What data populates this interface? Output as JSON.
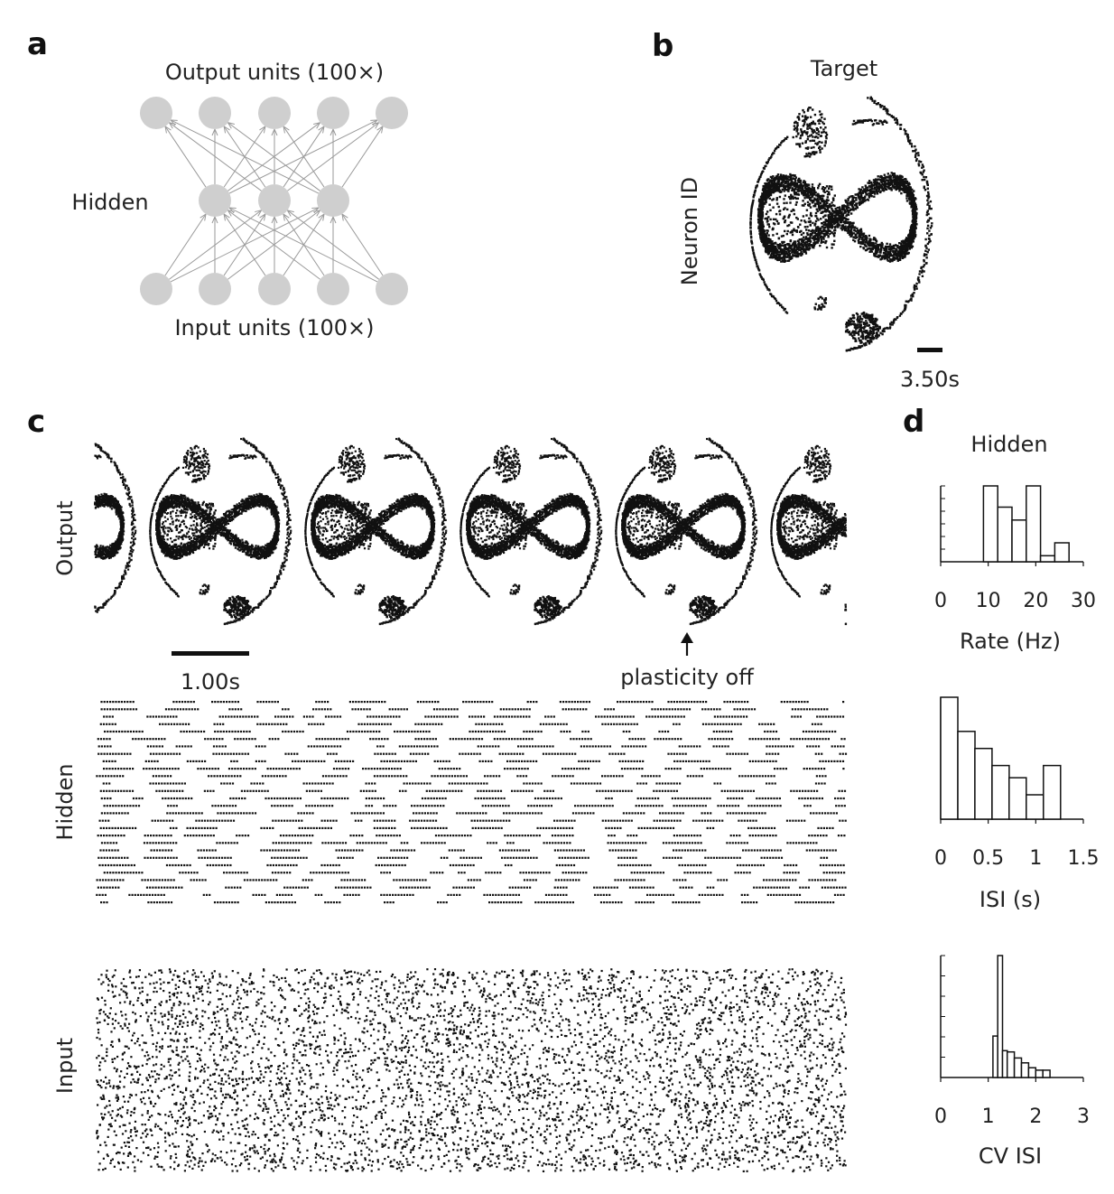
{
  "panels": {
    "a": {
      "letter": "a",
      "output_label": "Output units (100×)",
      "hidden_label": "Hidden",
      "input_label": "Input units (100×)",
      "colors": {
        "node": "#cfcfcf",
        "edge": "#9a9a9a"
      }
    },
    "b": {
      "letter": "b",
      "title": "Target",
      "ylabel": "Neuron ID",
      "scale_label": "3.50s"
    },
    "c": {
      "letter": "c",
      "rows": [
        {
          "key": "output",
          "label": "Output"
        },
        {
          "key": "hidden",
          "label": "Hidden"
        },
        {
          "key": "input",
          "label": "Input"
        }
      ],
      "scale_label": "1.00s",
      "annotation": "plasticity off"
    },
    "d": {
      "letter": "d",
      "title": "Hidden"
    }
  },
  "chart_data": [
    {
      "type": "bar",
      "xlabel": "Rate (Hz)",
      "xlim": [
        0,
        30
      ],
      "xticks": [
        0,
        10,
        20,
        30
      ],
      "bin_edges": [
        9,
        12,
        15,
        18,
        21,
        24,
        27
      ],
      "values": [
        1.0,
        0.72,
        0.55,
        1.0,
        0.08,
        0.25
      ]
    },
    {
      "type": "bar",
      "xlabel": "ISI (s)",
      "xlim": [
        0,
        1.5
      ],
      "xticks": [
        "0",
        "0.5",
        "1",
        "1.5"
      ],
      "bin_edges": [
        0.0,
        0.18,
        0.36,
        0.54,
        0.72,
        0.9,
        1.08,
        1.26
      ],
      "values": [
        1.0,
        0.72,
        0.58,
        0.44,
        0.34,
        0.2,
        0.44
      ]
    },
    {
      "type": "bar",
      "xlabel": "CV ISI",
      "xlim": [
        0,
        3
      ],
      "xticks": [
        0,
        1,
        2,
        3
      ],
      "bin_edges": [
        1.0,
        1.1,
        1.2,
        1.3,
        1.4,
        1.55,
        1.7,
        1.85,
        2.0,
        2.15,
        2.3
      ],
      "values": [
        0.0,
        0.34,
        1.0,
        0.22,
        0.21,
        0.16,
        0.12,
        0.08,
        0.06,
        0.06
      ]
    }
  ]
}
